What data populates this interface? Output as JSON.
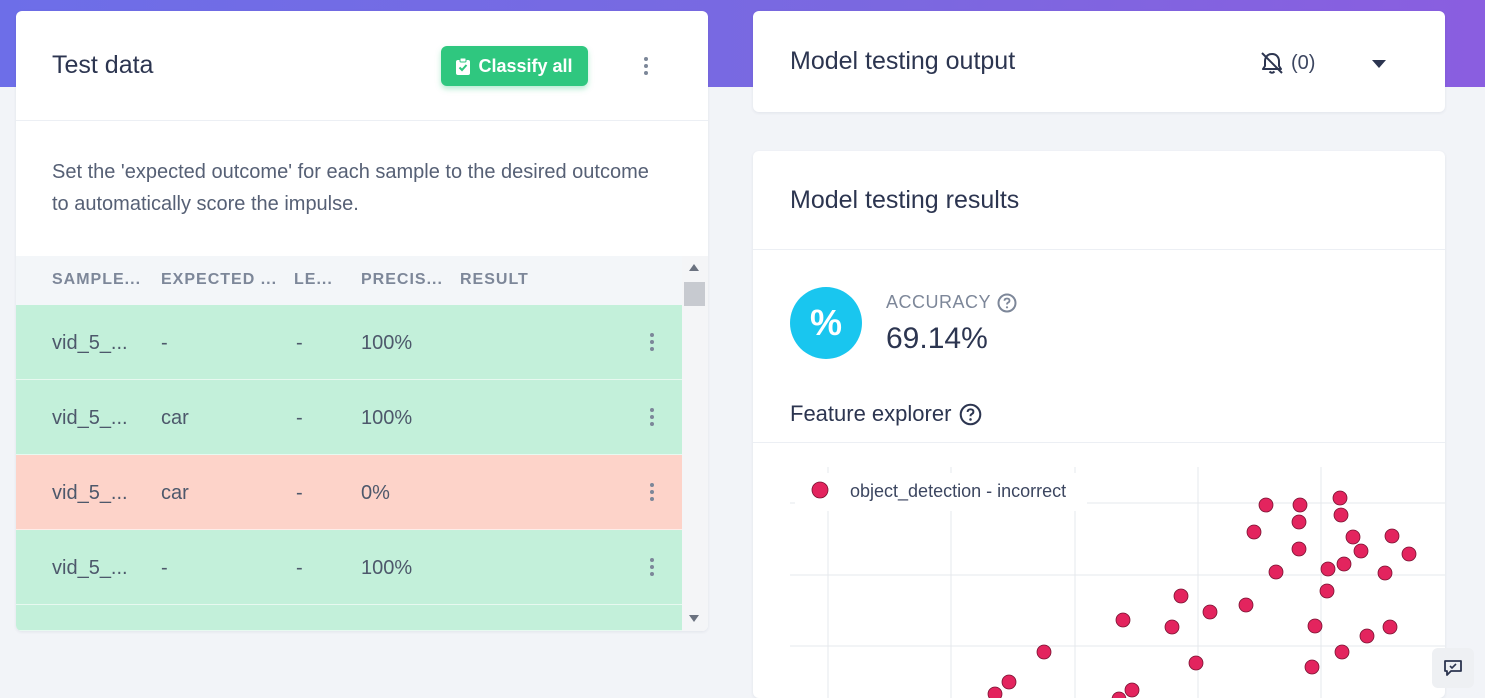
{
  "test_data": {
    "title": "Test data",
    "classify_all_label": "Classify all",
    "description": "Set the 'expected outcome' for each sample to the desired outcome to automatically score the impulse.",
    "columns": [
      "SAMPLE...",
      "EXPECTED ...",
      "LE...",
      "PRECIS...",
      "RESULT"
    ],
    "rows": [
      {
        "sample": "vid_5_...",
        "expected": "-",
        "length": "-",
        "precision": "100%",
        "result": "",
        "status": "correct"
      },
      {
        "sample": "vid_5_...",
        "expected": "car",
        "length": "-",
        "precision": "100%",
        "result": "",
        "status": "correct"
      },
      {
        "sample": "vid_5_...",
        "expected": "car",
        "length": "-",
        "precision": "0%",
        "result": "",
        "status": "incorrect"
      },
      {
        "sample": "vid_5_...",
        "expected": "-",
        "length": "-",
        "precision": "100%",
        "result": "",
        "status": "correct"
      },
      {
        "sample": "",
        "expected": "",
        "length": "",
        "precision": "",
        "result": "",
        "status": "correct"
      }
    ]
  },
  "model_testing_output": {
    "title": "Model testing output",
    "notification_count": "(0)",
    "icons": {
      "bell": "bell-off-icon",
      "dropdown": "caret-down-icon"
    }
  },
  "model_testing_results": {
    "title": "Model testing results",
    "accuracy_label": "ACCURACY",
    "accuracy_value": "69.14%",
    "accuracy_icon_text": "%",
    "feature_explorer_title": "Feature explorer"
  },
  "colors": {
    "correct_row": "#c3f0da",
    "incorrect_row": "#fdd3c9",
    "accent_green": "#2fc77f",
    "accuracy_blue": "#19c6ef",
    "point_color": "#e3245e"
  },
  "chart_data": {
    "type": "scatter",
    "legend": [
      {
        "name": "object_detection - incorrect",
        "color": "#e3245e"
      }
    ],
    "legend_position": "top-left",
    "grid": true,
    "series": [
      {
        "name": "object_detection - incorrect",
        "points": [
          [
            476,
            38
          ],
          [
            510,
            38
          ],
          [
            550,
            31
          ],
          [
            509,
            55
          ],
          [
            551,
            48
          ],
          [
            464,
            65
          ],
          [
            563,
            70
          ],
          [
            602,
            69
          ],
          [
            509,
            82
          ],
          [
            571,
            84
          ],
          [
            554,
            97
          ],
          [
            538,
            102
          ],
          [
            486,
            105
          ],
          [
            595,
            106
          ],
          [
            619,
            87
          ],
          [
            537,
            124
          ],
          [
            391,
            129
          ],
          [
            456,
            138
          ],
          [
            420,
            145
          ],
          [
            333,
            153
          ],
          [
            382,
            160
          ],
          [
            525,
            159
          ],
          [
            600,
            160
          ],
          [
            577,
            169
          ],
          [
            254,
            185
          ],
          [
            552,
            185
          ],
          [
            406,
            196
          ],
          [
            522,
            200
          ],
          [
            219,
            215
          ],
          [
            205,
            227
          ],
          [
            342,
            223
          ],
          [
            329,
            232
          ]
        ]
      }
    ]
  }
}
